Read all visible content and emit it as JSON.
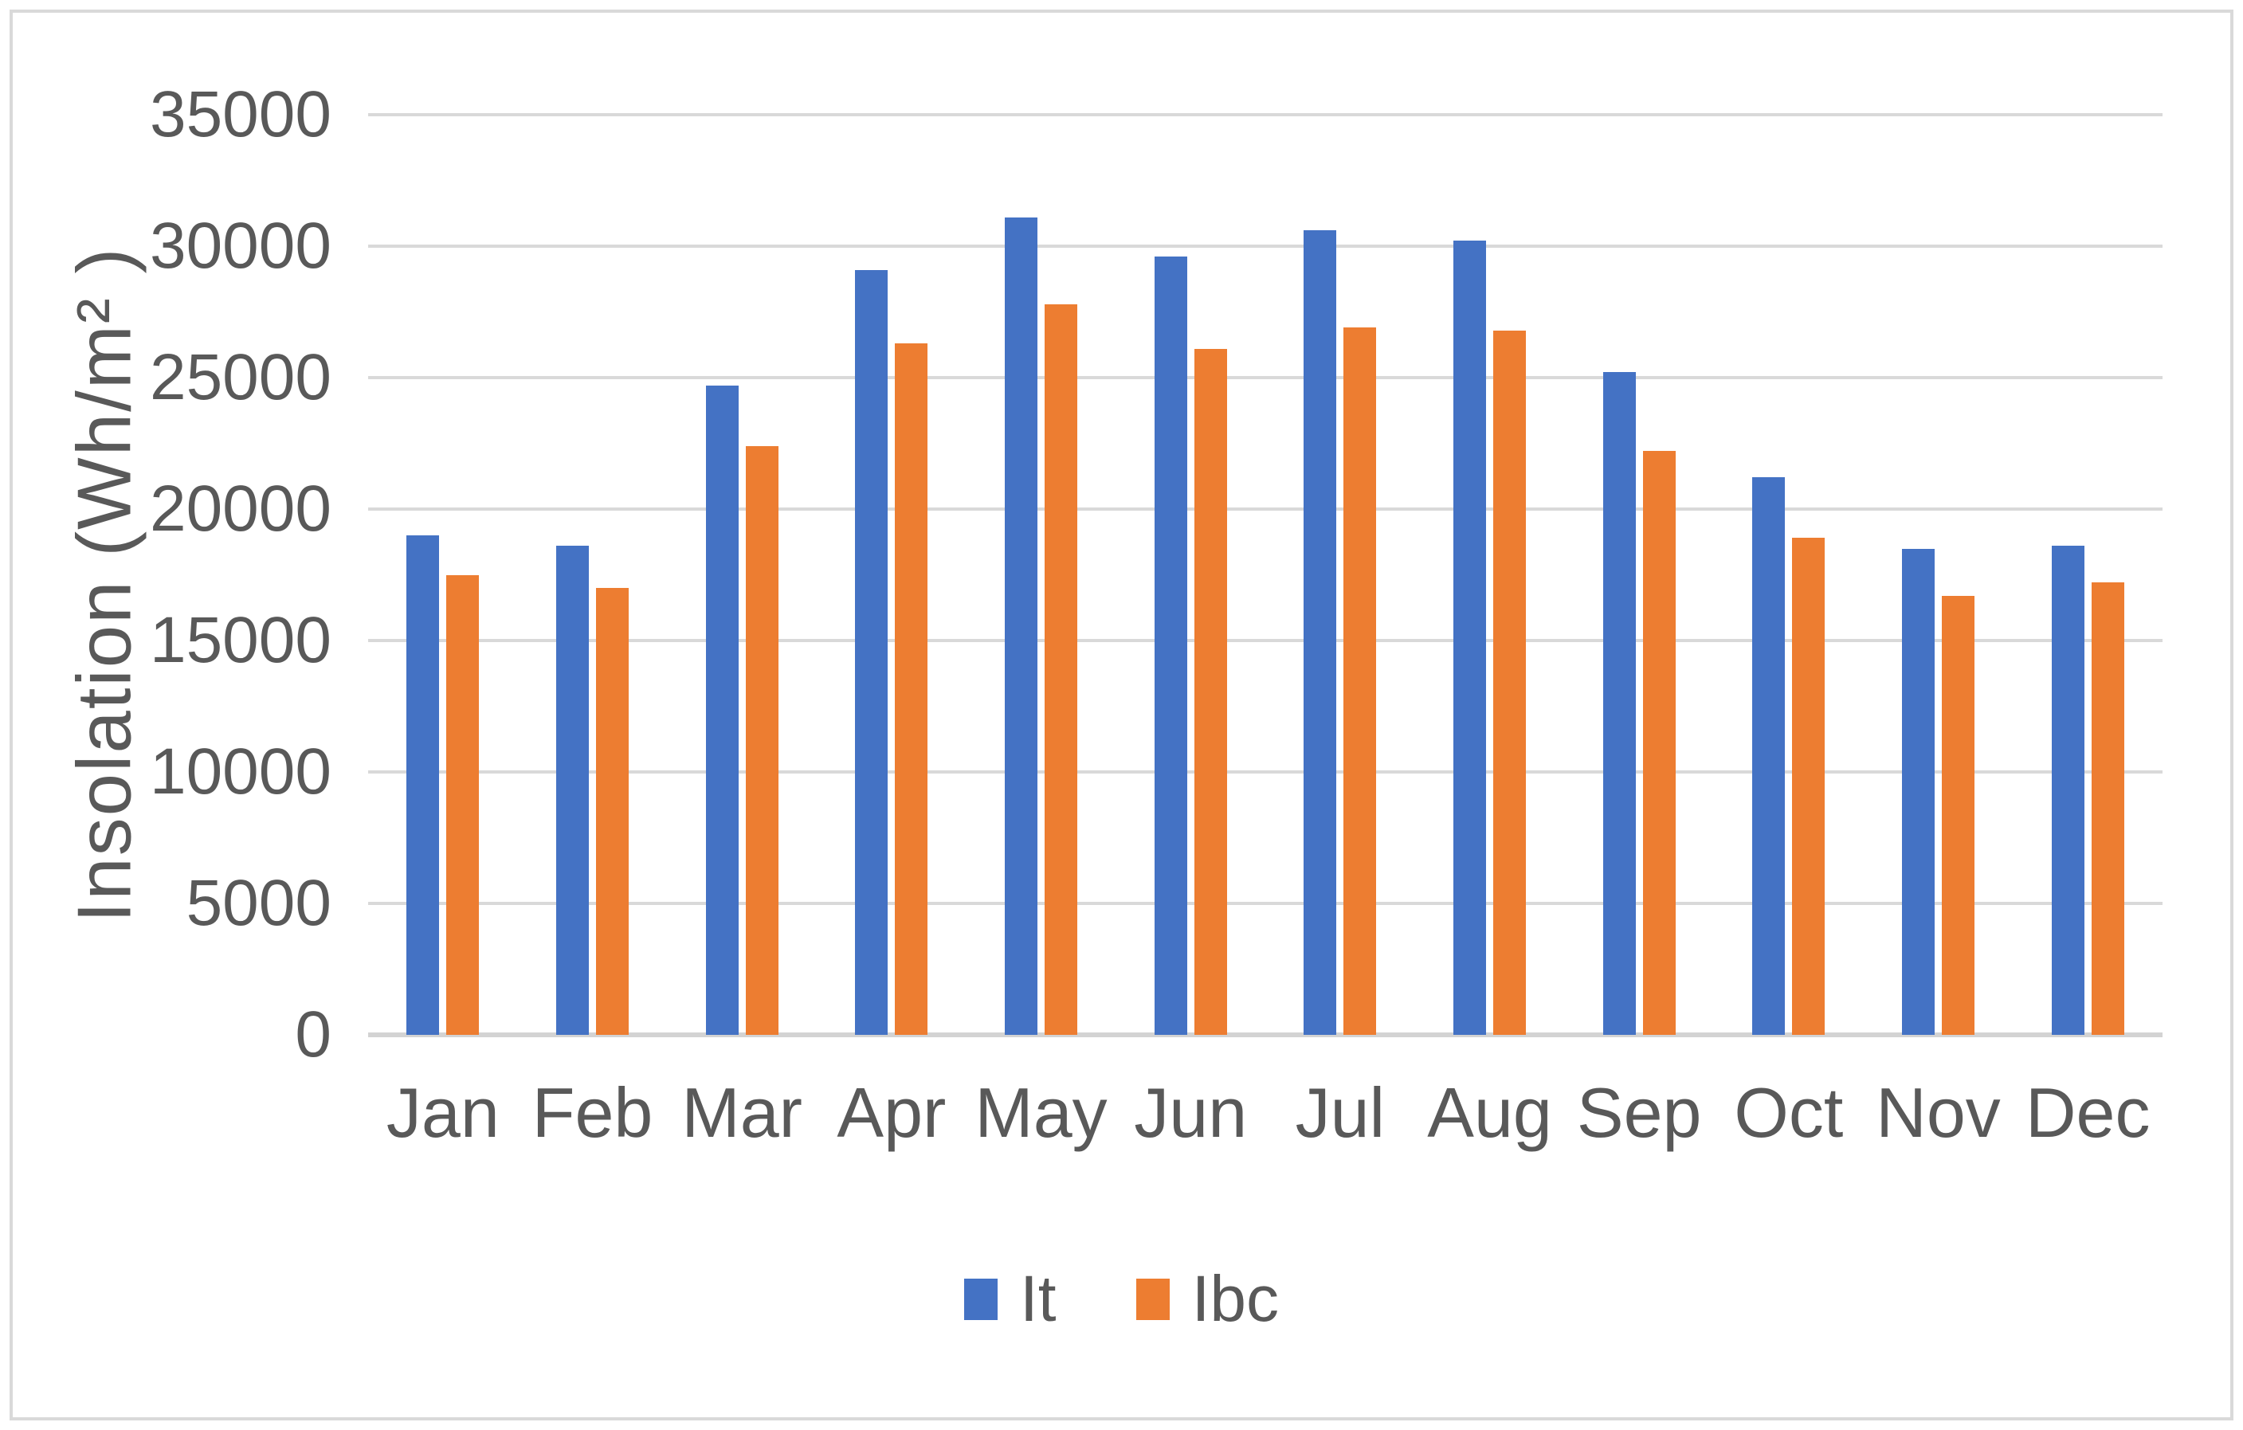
{
  "chart_data": {
    "type": "bar",
    "title": "",
    "ylabel": "Insolation (Wh/m² )",
    "xlabel": "",
    "ylim": [
      0,
      35000
    ],
    "ytick_step": 5000,
    "yticks": [
      35000,
      30000,
      25000,
      20000,
      15000,
      10000,
      5000,
      0
    ],
    "grid": true,
    "legend_position": "bottom",
    "categories": [
      "Jan",
      "Feb",
      "Mar",
      "Apr",
      "May",
      "Jun",
      "Jul",
      "Aug",
      "Sep",
      "Oct",
      "Nov",
      "Dec"
    ],
    "series": [
      {
        "name": "It",
        "color": "#4472C4",
        "values": [
          19000,
          18600,
          24700,
          29100,
          31100,
          29600,
          30600,
          30200,
          25200,
          21200,
          18500,
          18600
        ]
      },
      {
        "name": "Ibc",
        "color": "#ED7D31",
        "values": [
          17500,
          17000,
          22400,
          26300,
          27800,
          26100,
          26900,
          26800,
          22200,
          18900,
          16700,
          17200
        ]
      }
    ],
    "colors": {
      "text": "#595959",
      "gridline": "#D9D9D9",
      "axis_line": "#D3D3D3",
      "background": "#FFFFFF",
      "border": "#D9D9D9"
    }
  }
}
